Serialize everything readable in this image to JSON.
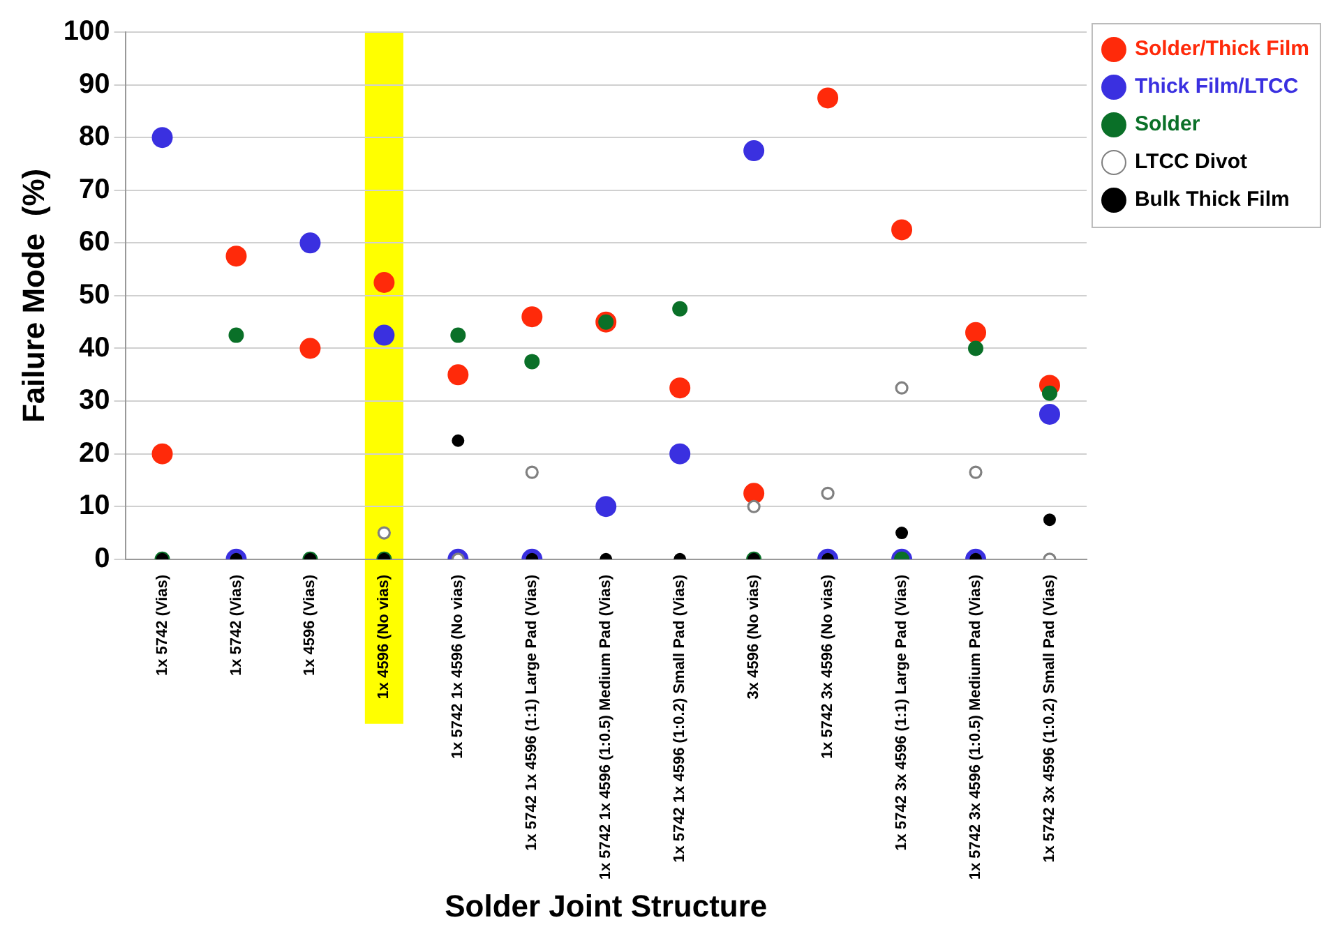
{
  "chart_data": {
    "type": "scatter",
    "xlabel": "Solder Joint Structure",
    "ylabel": "Failure Mode  (%)",
    "categories": [
      "1x 5742 (Vias)",
      "1x 5742 (Vias)",
      "1x 4596 (Vias)",
      "1x 4596 (No vias)",
      "1x 5742 1x 4596 (No vias)",
      "1x 5742 1x 4596 (1:1) Large Pad (Vias)",
      "1x 5742 1x 4596 (1:0.5) Medium Pad (Vias)",
      "1x 5742 1x 4596 (1:0.2) Small Pad (Vias)",
      "3x 4596 (No vias)",
      "1x 5742 3x 4596 (No vias)",
      "1x 5742 3x 4596 (1:1) Large Pad (Vias)",
      "1x 5742 3x 4596 (1:0.5) Medium Pad (Vias)",
      "1x 5742 3x 4596 (1:0.2) Small Pad (Vias)"
    ],
    "series": [
      {
        "name": "Solder/Thick Film",
        "color": "#ff2a0a",
        "values": [
          20,
          57.5,
          40,
          52.5,
          35,
          46,
          45,
          32.5,
          12.5,
          87.5,
          62.5,
          43,
          33
        ]
      },
      {
        "name": "Thick Film/LTCC",
        "color": "#3a30e0",
        "values": [
          80,
          0,
          60,
          42.5,
          0,
          0,
          10,
          20,
          77.5,
          0,
          0,
          0,
          27.5
        ]
      },
      {
        "name": "Solder",
        "color": "#0a7028",
        "values": [
          0,
          42.5,
          0,
          0,
          42.5,
          37.5,
          45,
          47.5,
          0,
          null,
          0,
          40,
          31.5
        ]
      },
      {
        "name": "LTCC Divot",
        "color": "#ffffff",
        "values": [
          null,
          null,
          null,
          5,
          0,
          16.5,
          null,
          null,
          10,
          12.5,
          32.5,
          16.5,
          0
        ]
      },
      {
        "name": "Bulk Thick Film",
        "color": "#000000",
        "values": [
          0,
          0,
          0,
          0,
          22.5,
          0,
          0,
          0,
          0,
          0,
          5,
          0,
          7.5
        ]
      }
    ],
    "ylim": [
      0,
      100
    ],
    "yticks": [
      0,
      10,
      20,
      30,
      40,
      50,
      60,
      70,
      80,
      90,
      100
    ],
    "bands": [
      {
        "axis": "x",
        "from": "1x 4596 (No vias)",
        "to": "1x 4596 (No vias)",
        "color": "#ffff00"
      }
    ],
    "grid": "y",
    "legend": "top right",
    "marker": "circle"
  }
}
